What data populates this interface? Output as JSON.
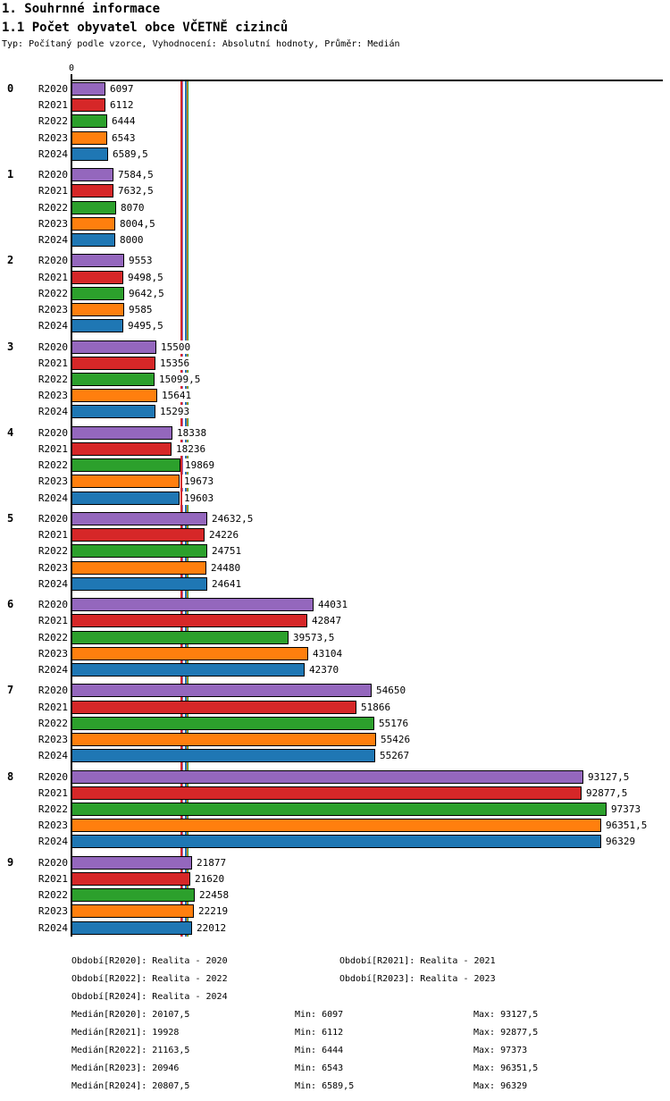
{
  "header": {
    "title1": "1. Souhrnné informace",
    "title2": "1.1 Počet obyvatel obce VČETNĚ cizinců",
    "meta": "Typ: Počítaný podle vzorce, Vyhodnocení: Absolutní hodnoty, Průměr: Medián"
  },
  "axis": {
    "zero_label": "0"
  },
  "chart_data": {
    "type": "bar",
    "orientation": "horizontal",
    "title": "1.1 Počet obyvatel obce VČETNĚ cizinců",
    "categories": [
      "0",
      "1",
      "2",
      "3",
      "4",
      "5",
      "6",
      "7",
      "8",
      "9"
    ],
    "series": [
      {
        "name": "R2020",
        "color": "#9467bd",
        "values": [
          6097,
          7584.5,
          9553,
          15500,
          18338,
          24632.5,
          44031,
          54650,
          93127.5,
          21877
        ],
        "labels": [
          "6097",
          "7584,5",
          "9553",
          "15500",
          "18338",
          "24632,5",
          "44031",
          "54650",
          "93127,5",
          "21877"
        ]
      },
      {
        "name": "R2021",
        "color": "#d62728",
        "values": [
          6112,
          7632.5,
          9498.5,
          15356,
          18236,
          24226,
          42847,
          51866,
          92877.5,
          21620
        ],
        "labels": [
          "6112",
          "7632,5",
          "9498,5",
          "15356",
          "18236",
          "24226",
          "42847",
          "51866",
          "92877,5",
          "21620"
        ]
      },
      {
        "name": "R2022",
        "color": "#2ca02c",
        "values": [
          6444,
          8070,
          9642.5,
          15099.5,
          19869,
          24751,
          39573.5,
          55176,
          97373,
          22458
        ],
        "labels": [
          "6444",
          "8070",
          "9642,5",
          "15099,5",
          "19869",
          "24751",
          "39573,5",
          "55176",
          "97373",
          "22458"
        ]
      },
      {
        "name": "R2023",
        "color": "#ff7f0e",
        "values": [
          6543,
          8004.5,
          9585,
          15641,
          19673,
          24480,
          43104,
          55426,
          96351.5,
          22219
        ],
        "labels": [
          "6543",
          "8004,5",
          "9585",
          "15641",
          "19673",
          "24480",
          "43104",
          "55426",
          "96351,5",
          "22219"
        ]
      },
      {
        "name": "R2024",
        "color": "#1f77b4",
        "values": [
          6589.5,
          8000,
          9495.5,
          15293,
          19603,
          24641,
          42370,
          55267,
          96329,
          22012
        ],
        "labels": [
          "6589,5",
          "8000",
          "9495,5",
          "15293",
          "19603",
          "24641",
          "42370",
          "55267",
          "96329",
          "22012"
        ]
      }
    ],
    "medians": {
      "R2020": 20107.5,
      "R2021": 19928,
      "R2022": 21163.5,
      "R2023": 20946,
      "R2024": 20807.5
    },
    "xlim": [
      0,
      107600
    ],
    "grid": false,
    "legend_position": "none"
  },
  "footer": {
    "obdobi": [
      {
        "row": 0,
        "col": 0,
        "label": "Období[R2020]:",
        "value": "Realita - 2020"
      },
      {
        "row": 0,
        "col": 1,
        "label": "Období[R2021]:",
        "value": "Realita - 2021"
      },
      {
        "row": 1,
        "col": 0,
        "label": "Období[R2022]:",
        "value": "Realita - 2022"
      },
      {
        "row": 1,
        "col": 1,
        "label": "Období[R2023]:",
        "value": "Realita - 2023"
      },
      {
        "row": 2,
        "col": 0,
        "label": "Období[R2024]:",
        "value": "Realita - 2024"
      }
    ],
    "stats": [
      {
        "label": "Medián[R2020]:",
        "value": "20107,5",
        "min_label": "Min:",
        "min": "6097",
        "max_label": "Max:",
        "max": "93127,5"
      },
      {
        "label": "Medián[R2021]:",
        "value": "19928",
        "min_label": "Min:",
        "min": "6112",
        "max_label": "Max:",
        "max": "92877,5"
      },
      {
        "label": "Medián[R2022]:",
        "value": "21163,5",
        "min_label": "Min:",
        "min": "6444",
        "max_label": "Max:",
        "max": "97373"
      },
      {
        "label": "Medián[R2023]:",
        "value": "20946",
        "min_label": "Min:",
        "min": "6543",
        "max_label": "Max:",
        "max": "96351,5"
      },
      {
        "label": "Medián[R2024]:",
        "value": "20807,5",
        "min_label": "Min:",
        "min": "6589,5",
        "max_label": "Max:",
        "max": "96329"
      }
    ]
  }
}
